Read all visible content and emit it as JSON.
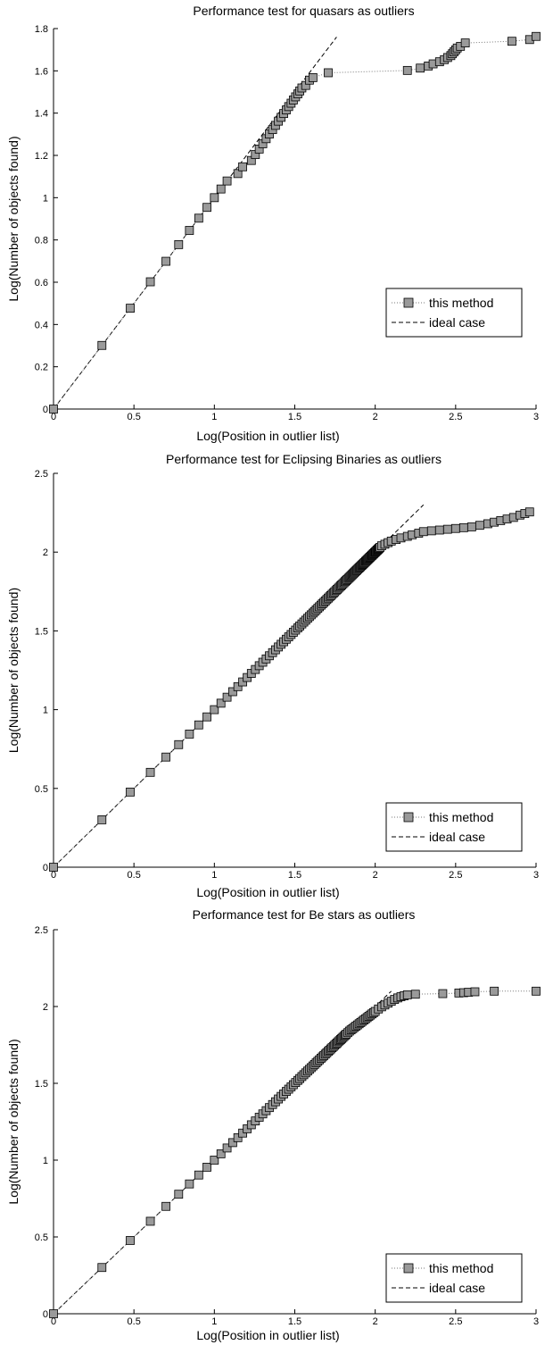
{
  "chart_data": [
    {
      "type": "scatter",
      "title": "Performance test for quasars as outliers",
      "xlabel": "Log(Position in outlier list)",
      "ylabel": "Log(Number of objects found)",
      "xlim": [
        0,
        3
      ],
      "ylim": [
        0,
        1.8
      ],
      "xticks": [
        0,
        0.5,
        1,
        1.5,
        2,
        2.5,
        3
      ],
      "xtick_labels": [
        "0",
        "0.5",
        "1",
        "1.5",
        "2",
        "2.5",
        "3"
      ],
      "yticks": [
        0,
        0.2,
        0.4,
        0.6,
        0.8,
        1,
        1.2,
        1.4,
        1.6,
        1.8
      ],
      "ytick_labels": [
        "0",
        "0.2",
        "0.4",
        "0.6",
        "0.8",
        "1",
        "1.2",
        "1.4",
        "1.6",
        "1.8"
      ],
      "legend": {
        "position": "lower-right",
        "entries": [
          "this method",
          "ideal case"
        ]
      },
      "ideal": {
        "x": [
          0,
          1.76
        ],
        "y": [
          0,
          1.76
        ]
      },
      "series": [
        {
          "name": "this method",
          "x": [
            0,
            0.301,
            0.477,
            0.602,
            0.699,
            0.778,
            0.845,
            0.903,
            0.954,
            1.0,
            1.041,
            1.079,
            1.146,
            1.176,
            1.23,
            1.255,
            1.279,
            1.301,
            1.322,
            1.342,
            1.362,
            1.38,
            1.398,
            1.415,
            1.431,
            1.447,
            1.462,
            1.477,
            1.491,
            1.505,
            1.519,
            1.531,
            1.544,
            1.568,
            1.591,
            1.613,
            1.708,
            2.2,
            2.28,
            2.33,
            2.36,
            2.4,
            2.43,
            2.45,
            2.47,
            2.48,
            2.49,
            2.5,
            2.51,
            2.53,
            2.56,
            2.85,
            2.96,
            3.0
          ],
          "y": [
            0,
            0.301,
            0.477,
            0.602,
            0.699,
            0.778,
            0.845,
            0.903,
            0.954,
            1.0,
            1.041,
            1.079,
            1.114,
            1.146,
            1.176,
            1.204,
            1.23,
            1.255,
            1.279,
            1.301,
            1.322,
            1.342,
            1.362,
            1.38,
            1.398,
            1.415,
            1.431,
            1.447,
            1.462,
            1.477,
            1.491,
            1.505,
            1.519,
            1.531,
            1.556,
            1.568,
            1.591,
            1.602,
            1.613,
            1.623,
            1.633,
            1.643,
            1.653,
            1.663,
            1.672,
            1.681,
            1.69,
            1.699,
            1.708,
            1.716,
            1.732,
            1.74,
            1.748,
            1.763
          ]
        }
      ]
    },
    {
      "type": "scatter",
      "title": "Performance test for Eclipsing Binaries as outliers",
      "xlabel": "Log(Position in outlier list)",
      "ylabel": "Log(Number of objects found)",
      "xlim": [
        0,
        3
      ],
      "ylim": [
        0,
        2.5
      ],
      "xticks": [
        0,
        0.5,
        1,
        1.5,
        2,
        2.5,
        3
      ],
      "xtick_labels": [
        "0",
        "0.5",
        "1",
        "1.5",
        "2",
        "2.5",
        "3"
      ],
      "yticks": [
        0,
        0.5,
        1,
        1.5,
        2,
        2.5
      ],
      "ytick_labels": [
        "0",
        "0.5",
        "1",
        "1.5",
        "2",
        "2.5"
      ],
      "legend": {
        "position": "lower-right",
        "entries": [
          "this method",
          "ideal case"
        ]
      },
      "ideal": {
        "x": [
          0,
          2.3
        ],
        "y": [
          0,
          2.3
        ]
      },
      "series": [
        {
          "name": "this method",
          "x": [
            0,
            0.301,
            0.477,
            0.602,
            0.699,
            0.778,
            0.845,
            0.903,
            0.954,
            1.0,
            1.041,
            1.079,
            1.114,
            1.146,
            1.176,
            1.204,
            1.23,
            1.255,
            1.279,
            1.301,
            1.322,
            1.342,
            1.362,
            1.38,
            1.398,
            1.415,
            1.431,
            1.447,
            1.462,
            1.477,
            1.491,
            1.505,
            1.519,
            1.531,
            1.544,
            1.556,
            1.568,
            1.58,
            1.591,
            1.602,
            1.613,
            1.623,
            1.633,
            1.643,
            1.653,
            1.663,
            1.672,
            1.681,
            1.69,
            1.699,
            1.708,
            1.716,
            1.724,
            1.732,
            1.74,
            1.748,
            1.756,
            1.763,
            1.771,
            1.778,
            1.785,
            1.792,
            1.799,
            1.806,
            1.813,
            1.82,
            1.826,
            1.833,
            1.839,
            1.845,
            1.851,
            1.857,
            1.863,
            1.869,
            1.875,
            1.881,
            1.886,
            1.892,
            1.898,
            1.903,
            1.908,
            1.914,
            1.919,
            1.924,
            1.929,
            1.934,
            1.94,
            1.944,
            1.949,
            1.954,
            1.959,
            1.964,
            1.968,
            1.973,
            1.978,
            1.982,
            1.987,
            1.991,
            1.996,
            2.0,
            2.004,
            2.009,
            2.013,
            2.017,
            2.021,
            2.025,
            2.03,
            2.04,
            2.06,
            2.08,
            2.1,
            2.13,
            2.16,
            2.2,
            2.23,
            2.27,
            2.3,
            2.35,
            2.4,
            2.45,
            2.5,
            2.55,
            2.6,
            2.65,
            2.7,
            2.74,
            2.78,
            2.82,
            2.86,
            2.9,
            2.93,
            2.96
          ],
          "y": [
            0,
            0.301,
            0.477,
            0.602,
            0.699,
            0.778,
            0.845,
            0.903,
            0.954,
            1.0,
            1.041,
            1.079,
            1.114,
            1.146,
            1.176,
            1.204,
            1.23,
            1.255,
            1.279,
            1.301,
            1.322,
            1.342,
            1.362,
            1.38,
            1.398,
            1.415,
            1.431,
            1.447,
            1.462,
            1.477,
            1.491,
            1.505,
            1.519,
            1.531,
            1.544,
            1.556,
            1.568,
            1.58,
            1.591,
            1.602,
            1.613,
            1.623,
            1.633,
            1.643,
            1.653,
            1.663,
            1.672,
            1.681,
            1.69,
            1.699,
            1.708,
            1.716,
            1.724,
            1.732,
            1.74,
            1.748,
            1.756,
            1.763,
            1.771,
            1.778,
            1.785,
            1.792,
            1.799,
            1.806,
            1.813,
            1.82,
            1.826,
            1.833,
            1.839,
            1.845,
            1.851,
            1.857,
            1.863,
            1.869,
            1.875,
            1.881,
            1.886,
            1.892,
            1.898,
            1.903,
            1.908,
            1.914,
            1.919,
            1.924,
            1.929,
            1.934,
            1.94,
            1.944,
            1.949,
            1.954,
            1.959,
            1.964,
            1.968,
            1.973,
            1.978,
            1.982,
            1.987,
            1.991,
            1.996,
            2.0,
            2.004,
            2.009,
            2.013,
            2.017,
            2.021,
            2.025,
            2.03,
            2.04,
            2.05,
            2.06,
            2.07,
            2.08,
            2.09,
            2.1,
            2.11,
            2.12,
            2.13,
            2.135,
            2.14,
            2.145,
            2.15,
            2.155,
            2.16,
            2.17,
            2.18,
            2.19,
            2.2,
            2.21,
            2.22,
            2.235,
            2.245,
            2.255
          ]
        }
      ]
    },
    {
      "type": "scatter",
      "title": "Performance test for Be stars as outliers",
      "xlabel": "Log(Position in outlier list)",
      "ylabel": "Log(Number of objects found)",
      "xlim": [
        0,
        3
      ],
      "ylim": [
        0,
        2.5
      ],
      "xticks": [
        0,
        0.5,
        1,
        1.5,
        2,
        2.5,
        3
      ],
      "xtick_labels": [
        "0",
        "0.5",
        "1",
        "1.5",
        "2",
        "2.5",
        "3"
      ],
      "yticks": [
        0,
        0.5,
        1,
        1.5,
        2,
        2.5
      ],
      "ytick_labels": [
        "0",
        "0.5",
        "1",
        "1.5",
        "2",
        "2.5"
      ],
      "legend": {
        "position": "lower-right",
        "entries": [
          "this method",
          "ideal case"
        ]
      },
      "ideal": {
        "x": [
          0,
          2.1
        ],
        "y": [
          0,
          2.1
        ]
      },
      "series": [
        {
          "name": "this method",
          "x": [
            0,
            0.301,
            0.477,
            0.602,
            0.699,
            0.778,
            0.845,
            0.903,
            0.954,
            1.0,
            1.041,
            1.079,
            1.114,
            1.146,
            1.176,
            1.204,
            1.23,
            1.255,
            1.279,
            1.301,
            1.322,
            1.342,
            1.362,
            1.38,
            1.398,
            1.415,
            1.431,
            1.447,
            1.462,
            1.477,
            1.491,
            1.505,
            1.519,
            1.531,
            1.544,
            1.556,
            1.568,
            1.58,
            1.591,
            1.602,
            1.613,
            1.623,
            1.633,
            1.643,
            1.653,
            1.663,
            1.672,
            1.681,
            1.69,
            1.699,
            1.708,
            1.716,
            1.724,
            1.732,
            1.74,
            1.748,
            1.756,
            1.763,
            1.771,
            1.778,
            1.785,
            1.792,
            1.799,
            1.806,
            1.813,
            1.82,
            1.83,
            1.84,
            1.85,
            1.86,
            1.87,
            1.88,
            1.89,
            1.9,
            1.91,
            1.92,
            1.93,
            1.94,
            1.95,
            1.96,
            1.97,
            1.98,
            1.99,
            2.0,
            2.02,
            2.04,
            2.06,
            2.08,
            2.1,
            2.12,
            2.14,
            2.16,
            2.18,
            2.2,
            2.25,
            2.42,
            2.52,
            2.55,
            2.58,
            2.62,
            2.74,
            3.0
          ],
          "y": [
            0,
            0.301,
            0.477,
            0.602,
            0.699,
            0.778,
            0.845,
            0.903,
            0.954,
            1.0,
            1.041,
            1.079,
            1.114,
            1.146,
            1.176,
            1.204,
            1.23,
            1.255,
            1.279,
            1.301,
            1.322,
            1.342,
            1.362,
            1.38,
            1.398,
            1.415,
            1.431,
            1.447,
            1.462,
            1.477,
            1.491,
            1.505,
            1.519,
            1.531,
            1.544,
            1.556,
            1.568,
            1.58,
            1.591,
            1.602,
            1.613,
            1.623,
            1.633,
            1.643,
            1.653,
            1.663,
            1.672,
            1.681,
            1.69,
            1.699,
            1.708,
            1.716,
            1.724,
            1.732,
            1.74,
            1.748,
            1.756,
            1.763,
            1.771,
            1.778,
            1.785,
            1.792,
            1.799,
            1.806,
            1.813,
            1.82,
            1.83,
            1.84,
            1.848,
            1.856,
            1.864,
            1.872,
            1.88,
            1.888,
            1.896,
            1.904,
            1.912,
            1.92,
            1.928,
            1.936,
            1.944,
            1.952,
            1.96,
            1.968,
            1.984,
            1.998,
            2.01,
            2.022,
            2.034,
            2.046,
            2.056,
            2.064,
            2.07,
            2.076,
            2.08,
            2.084,
            2.088,
            2.09,
            2.093,
            2.096,
            2.1,
            2.1
          ]
        }
      ]
    }
  ]
}
